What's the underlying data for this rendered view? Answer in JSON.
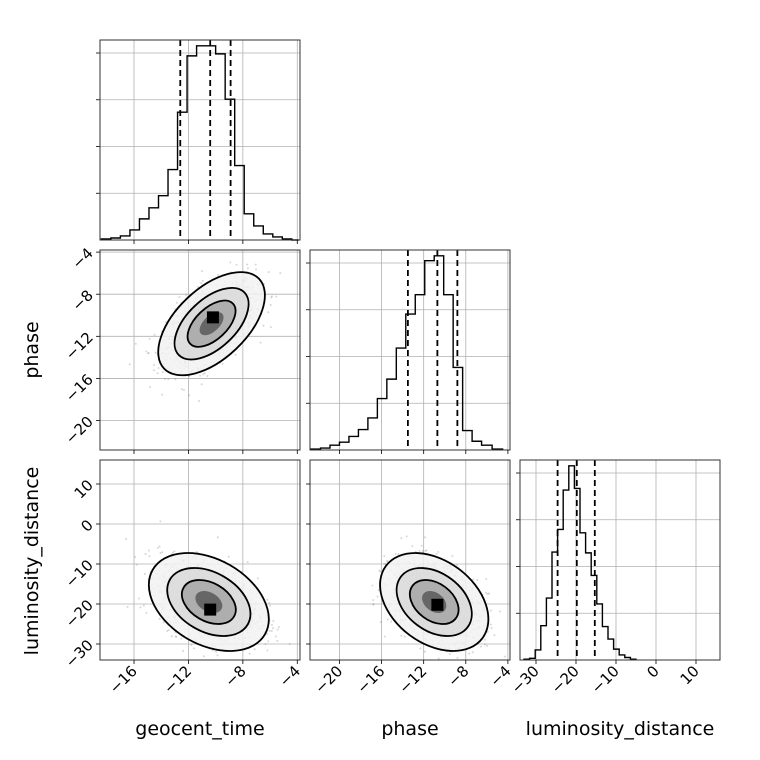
{
  "chart_data": {
    "type": "corner",
    "parameters": [
      "geocent_time",
      "phase",
      "luminosity_distance"
    ],
    "grid": true,
    "panels": {
      "hist_geocent_time": {
        "xlim": [
          -18.5,
          -3.8
        ],
        "bin_edges": [
          -18.4,
          -17.7,
          -17.0,
          -16.3,
          -15.6,
          -14.9,
          -14.2,
          -13.5,
          -12.8,
          -12.1,
          -11.4,
          -10.7,
          -10.0,
          -9.3,
          -8.6,
          -7.9,
          -7.2,
          -6.5,
          -5.8,
          -5.1,
          -4.4,
          -3.9
        ],
        "counts": [
          1,
          2,
          4,
          10,
          21,
          32,
          44,
          70,
          127,
          183,
          193,
          193,
          185,
          140,
          74,
          26,
          14,
          6,
          3,
          1,
          0
        ],
        "quantiles": [
          -12.6,
          -10.4,
          -8.9
        ]
      },
      "hist_phase": {
        "xlim": [
          -22.8,
          -3.8
        ],
        "bin_edges": [
          -22.7,
          -21.8,
          -20.9,
          -20.0,
          -19.1,
          -18.2,
          -17.3,
          -16.4,
          -15.5,
          -14.6,
          -13.7,
          -12.8,
          -11.9,
          -11.0,
          -10.1,
          -9.2,
          -8.3,
          -7.4,
          -6.5,
          -5.5,
          -4.5
        ],
        "counts": [
          1,
          2,
          5,
          8,
          14,
          21,
          33,
          53,
          73,
          105,
          140,
          160,
          195,
          200,
          160,
          85,
          20,
          9,
          5,
          1
        ],
        "quantiles": [
          -13.5,
          -10.7,
          -8.8
        ]
      },
      "hist_luminosity_distance": {
        "xlim": [
          -34,
          16
        ],
        "bin_edges": [
          -33.0,
          -31.6,
          -30.2,
          -28.8,
          -27.4,
          -26.0,
          -24.6,
          -23.2,
          -21.8,
          -20.4,
          -19.0,
          -17.6,
          -16.2,
          -14.8,
          -13.4,
          -12.0,
          -10.6,
          -9.2,
          -7.8,
          -6.4,
          -5.0
        ],
        "counts": [
          1,
          2,
          12,
          41,
          74,
          129,
          156,
          203,
          232,
          205,
          152,
          128,
          101,
          67,
          40,
          25,
          13,
          6,
          3,
          1
        ],
        "quantiles": [
          -24.6,
          -19.8,
          -15.3
        ]
      },
      "phase_vs_geocent_time": {
        "xlim": [
          -18.5,
          -3.8
        ],
        "ylim": [
          -22.8,
          -3.8
        ],
        "mean": [
          -10.3,
          -10.8
        ],
        "std": [
          1.6,
          2.0
        ],
        "rho": 0.55,
        "mode": [
          -10.2,
          -10.2
        ]
      },
      "luminosity_distance_vs_geocent_time": {
        "xlim": [
          -18.5,
          -3.8
        ],
        "ylim": [
          -34,
          16
        ],
        "mean": [
          -10.5,
          -19.5
        ],
        "std": [
          1.8,
          5.0
        ],
        "rho": -0.35,
        "mode": [
          -10.4,
          -21.4
        ]
      },
      "luminosity_distance_vs_phase": {
        "xlim": [
          -22.8,
          -3.8
        ],
        "ylim": [
          -34,
          16
        ],
        "mean": [
          -11.0,
          -19.5
        ],
        "std": [
          2.1,
          5.0
        ],
        "rho": -0.35,
        "mode": [
          -10.7,
          -20.2
        ]
      }
    },
    "ticks": {
      "geocent_time": [
        "−16",
        "−12",
        "−8",
        "−4"
      ],
      "geocent_time_values": [
        -16,
        -12,
        -8,
        -4
      ],
      "phase": [
        "−20",
        "−16",
        "−12",
        "−8",
        "−4"
      ],
      "phase_values": [
        -20,
        -16,
        -12,
        -8,
        -4
      ],
      "luminosity_distance": [
        "−30",
        "−20",
        "−10",
        "0",
        "10"
      ],
      "luminosity_distance_values": [
        -30,
        -20,
        -10,
        0,
        10
      ]
    },
    "labels": {
      "x": [
        "geocent_time",
        "phase",
        "luminosity_distance"
      ],
      "y": [
        "phase",
        "luminosity_distance"
      ]
    }
  }
}
